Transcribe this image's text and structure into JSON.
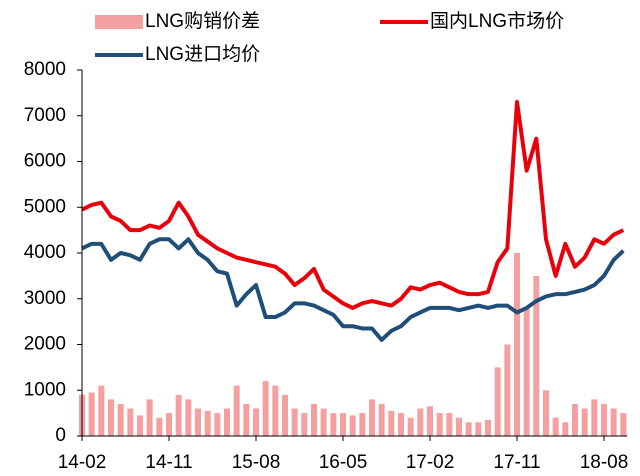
{
  "chart_data": {
    "type": "combo",
    "categories": [
      "14-02",
      null,
      null,
      null,
      null,
      null,
      null,
      null,
      null,
      "14-11",
      null,
      null,
      null,
      null,
      null,
      null,
      null,
      null,
      "15-08",
      null,
      null,
      null,
      null,
      null,
      null,
      null,
      null,
      "16-05",
      null,
      null,
      null,
      null,
      null,
      null,
      null,
      null,
      "17-02",
      null,
      null,
      null,
      null,
      null,
      null,
      null,
      null,
      "17-11",
      null,
      null,
      null,
      null,
      null,
      null,
      null,
      null,
      "18-08",
      null,
      null
    ],
    "series": [
      {
        "name": "LNG购销价差",
        "type": "bar",
        "color": "#f4a0a0",
        "values": [
          900,
          950,
          1100,
          800,
          700,
          600,
          450,
          800,
          400,
          500,
          900,
          800,
          600,
          550,
          500,
          600,
          1100,
          700,
          600,
          1200,
          1100,
          900,
          600,
          500,
          700,
          600,
          500,
          500,
          450,
          500,
          800,
          700,
          550,
          500,
          400,
          600,
          650,
          500,
          500,
          400,
          300,
          300,
          350,
          1500,
          2000,
          4000,
          2800,
          3500,
          1000,
          400,
          300,
          700,
          600,
          800,
          700,
          600,
          500
        ]
      },
      {
        "name": "国内LNG市场价",
        "type": "line",
        "color": "#e8000b",
        "values": [
          4950,
          5050,
          5100,
          4800,
          4700,
          4500,
          4500,
          4600,
          4550,
          4700,
          5100,
          4800,
          4400,
          4250,
          4100,
          4000,
          3900,
          3850,
          3800,
          3750,
          3700,
          3550,
          3300,
          3450,
          3650,
          3200,
          3050,
          2900,
          2800,
          2900,
          2950,
          2900,
          2850,
          3000,
          3250,
          3200,
          3300,
          3350,
          3250,
          3150,
          3100,
          3100,
          3150,
          3800,
          4100,
          7300,
          5800,
          6500,
          4300,
          3500,
          4200,
          3700,
          3900,
          4300,
          4200,
          4400,
          4500
        ]
      },
      {
        "name": "LNG进口均价",
        "type": "line",
        "color": "#1f4e79",
        "values": [
          4100,
          4200,
          4200,
          3850,
          4000,
          3950,
          3850,
          4200,
          4300,
          4300,
          4100,
          4300,
          4000,
          3850,
          3600,
          3550,
          2850,
          3100,
          3300,
          2600,
          2600,
          2700,
          2900,
          2900,
          2850,
          2750,
          2650,
          2400,
          2400,
          2350,
          2350,
          2100,
          2300,
          2400,
          2600,
          2700,
          2800,
          2800,
          2800,
          2750,
          2800,
          2850,
          2800,
          2850,
          2850,
          2700,
          2800,
          2950,
          3050,
          3100,
          3100,
          3150,
          3200,
          3300,
          3500,
          3850,
          4050
        ]
      }
    ],
    "ylim": [
      0,
      8000
    ],
    "yticks": [
      0,
      1000,
      2000,
      3000,
      4000,
      5000,
      6000,
      7000,
      8000
    ],
    "grid": false
  }
}
